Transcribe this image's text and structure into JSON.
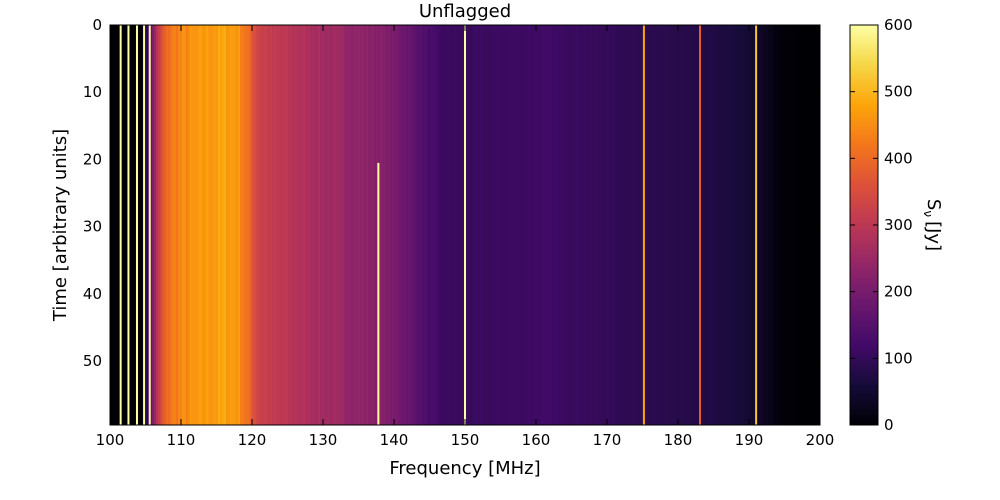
{
  "chart_data": {
    "type": "heatmap",
    "title": "Unflagged",
    "xlabel": "Frequency [MHz]",
    "ylabel": "Time [arbitrary units]",
    "xlim": [
      100,
      200
    ],
    "ylim": [
      59.5,
      0
    ],
    "x_ticks": [
      100,
      110,
      120,
      130,
      140,
      150,
      160,
      170,
      180,
      190,
      200
    ],
    "y_ticks": [
      0,
      10,
      20,
      30,
      40,
      50
    ],
    "colormap": "inferno",
    "colorbar": {
      "label_main": "S",
      "label_sub": "ν",
      "label_unit": "[Jy]",
      "range": [
        0,
        600
      ],
      "ticks": [
        0,
        100,
        200,
        300,
        400,
        500,
        600
      ]
    },
    "bandpass_profile": {
      "frequency_mhz": [
        100,
        104.5,
        105.5,
        106.5,
        107.5,
        108.5,
        110,
        112,
        114,
        116,
        118,
        119.5,
        121,
        123,
        126,
        129,
        132,
        135,
        138,
        141,
        143,
        145,
        147,
        150,
        155,
        160,
        165,
        170,
        175,
        180,
        185,
        188,
        190,
        192,
        193.5,
        195,
        197,
        200
      ],
      "flux_jy": [
        0,
        0,
        130,
        270,
        370,
        420,
        440,
        455,
        470,
        475,
        465,
        400,
        330,
        305,
        290,
        270,
        250,
        235,
        220,
        190,
        160,
        130,
        110,
        105,
        110,
        115,
        110,
        100,
        90,
        82,
        72,
        62,
        55,
        35,
        15,
        5,
        0,
        0
      ]
    },
    "flagged_lines": [
      {
        "frequency_mhz": 101.5,
        "time_range": [
          0,
          59.5
        ],
        "flux_jy": 600
      },
      {
        "frequency_mhz": 102.6,
        "time_range": [
          0,
          59.5
        ],
        "flux_jy": 600
      },
      {
        "frequency_mhz": 103.8,
        "time_range": [
          0,
          59.5
        ],
        "flux_jy": 600
      },
      {
        "frequency_mhz": 104.8,
        "time_range": [
          0,
          59.5
        ],
        "flux_jy": 600
      },
      {
        "frequency_mhz": 105.6,
        "time_range": [
          0,
          59.5
        ],
        "flux_jy": 600
      },
      {
        "frequency_mhz": 137.8,
        "time_range": [
          20.5,
          59.5
        ],
        "flux_jy": 600
      },
      {
        "frequency_mhz": 150.0,
        "time_range": [
          0,
          59.5
        ],
        "flux_jy": 600
      },
      {
        "frequency_mhz": 175.2,
        "time_range": [
          0,
          59.5
        ],
        "flux_jy": 480
      },
      {
        "frequency_mhz": 183.1,
        "time_range": [
          0,
          59.5
        ],
        "flux_jy": 380
      },
      {
        "frequency_mhz": 191.0,
        "time_range": [
          0,
          59.5
        ],
        "flux_jy": 520
      }
    ]
  }
}
